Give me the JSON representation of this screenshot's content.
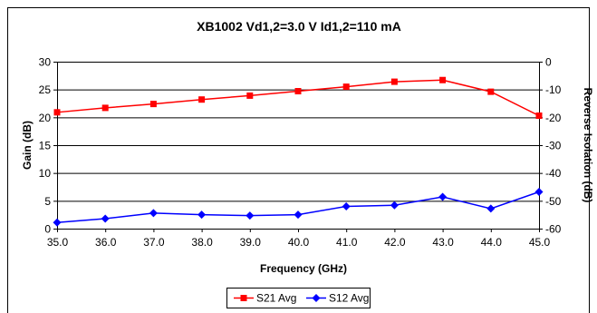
{
  "chart_data": {
    "type": "line",
    "title": "XB1002  Vd1,2=3.0 V  Id1,2=110 mA",
    "xlabel": "Frequency (GHz)",
    "ylabel": "Gain (dB)",
    "y2label": "Reverse Isolation (dB)",
    "x": [
      "35.0",
      "36.0",
      "37.0",
      "38.0",
      "39.0",
      "40.0",
      "41.0",
      "42.0",
      "43.0",
      "44.0",
      "45.0"
    ],
    "x_values": [
      35,
      36,
      37,
      38,
      39,
      40,
      41,
      42,
      43,
      44,
      45
    ],
    "xlim": [
      35,
      45
    ],
    "ylim": [
      0,
      30
    ],
    "yticks": [
      "0",
      "5",
      "10",
      "15",
      "20",
      "25",
      "30"
    ],
    "y2lim": [
      -60,
      0
    ],
    "y2ticks": [
      "-60",
      "-50",
      "-40",
      "-30",
      "-20",
      "-10",
      "0"
    ],
    "grid": "horizontal",
    "legend": "bottom",
    "series": [
      {
        "name": "S21 Avg",
        "axis": "left",
        "color": "#ff0000",
        "marker": "square",
        "values": [
          20.9,
          21.7,
          22.4,
          23.2,
          23.9,
          24.7,
          25.5,
          26.4,
          26.7,
          24.6,
          20.3
        ]
      },
      {
        "name": "S12 Avg",
        "axis": "right",
        "color": "#0000ff",
        "marker": "diamond",
        "values": [
          -57.8,
          -56.4,
          -54.4,
          -55.0,
          -55.3,
          -55.0,
          -52.0,
          -51.6,
          -48.6,
          -52.8,
          -46.8
        ]
      }
    ]
  }
}
